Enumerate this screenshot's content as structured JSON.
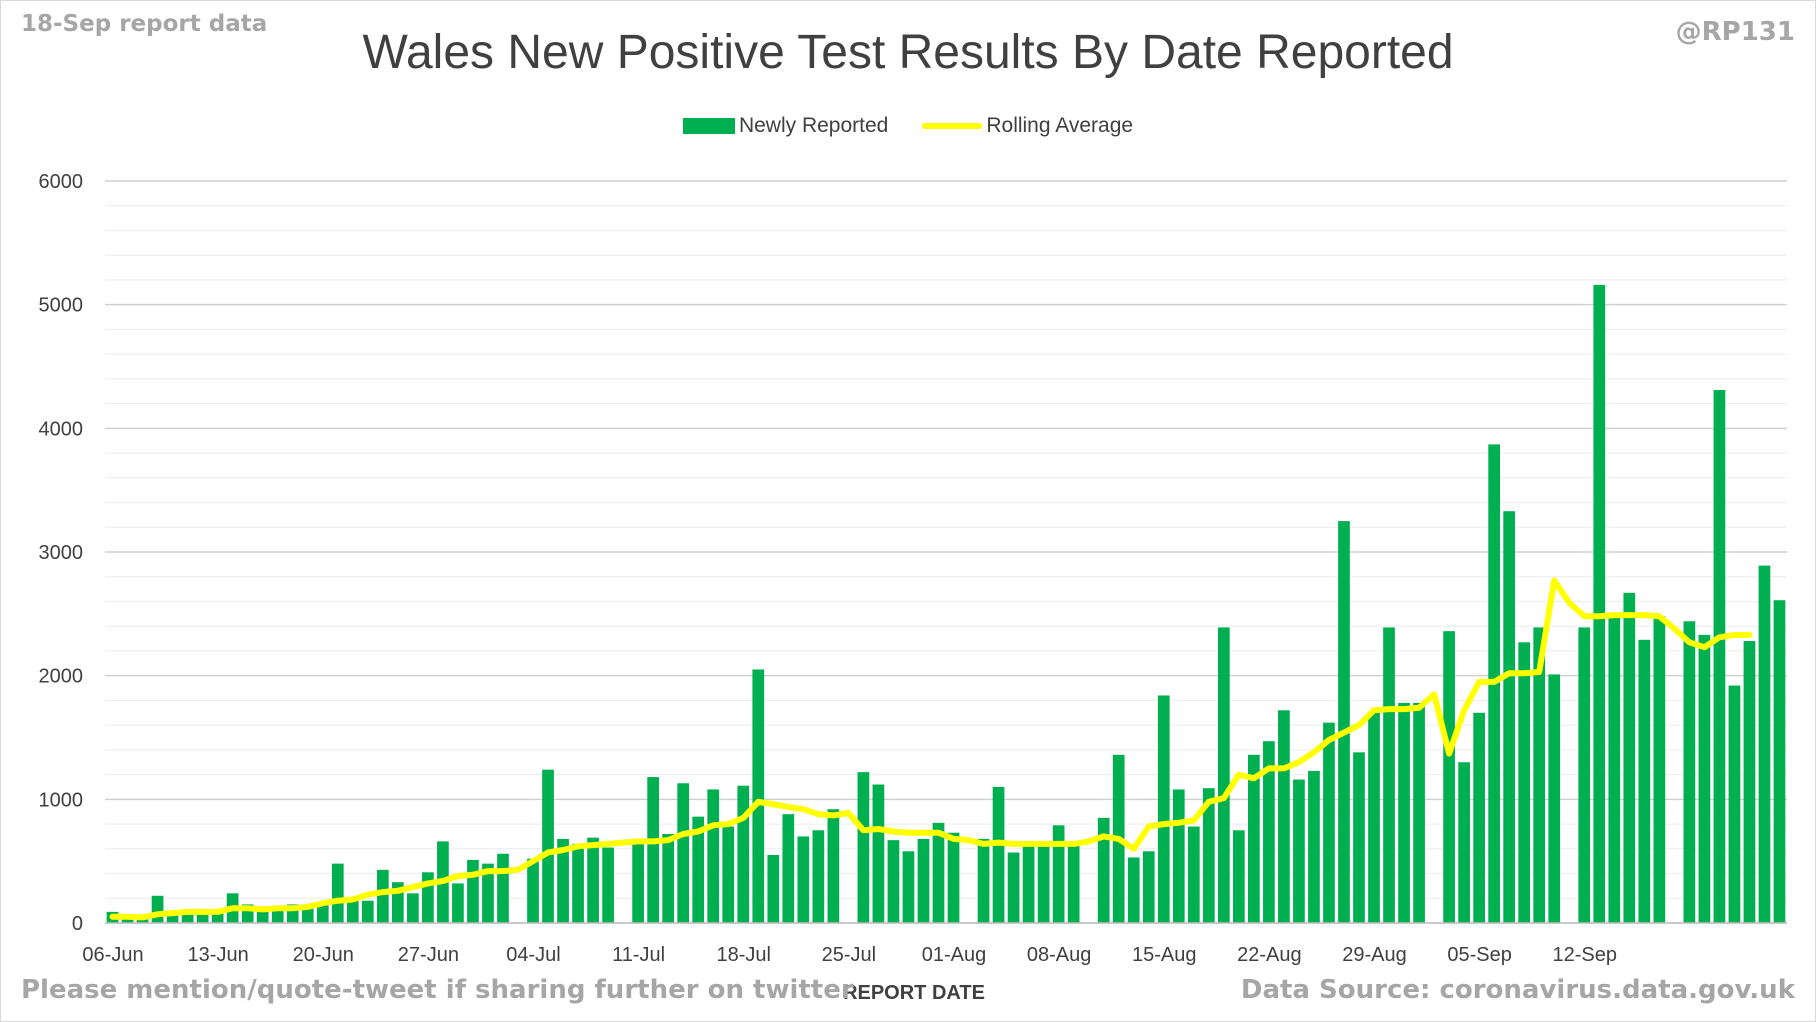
{
  "header": {
    "report_label": "18-Sep report data",
    "handle": "@RP131",
    "footer_left": "Please mention/quote-tweet if sharing further on twitter",
    "footer_right": "Data Source: coronavirus.data.gov.uk"
  },
  "colors": {
    "bar": "#00b050",
    "line": "#ffff00",
    "grid": "#d9d9d9",
    "text": "#404040"
  },
  "chart_data": {
    "type": "bar",
    "title": "Wales New Positive Test Results By Date Reported",
    "xlabel": "REPORT DATE",
    "ylabel": "",
    "ylim": [
      0,
      6000
    ],
    "yticks": [
      0,
      1000,
      2000,
      3000,
      4000,
      5000,
      6000
    ],
    "xticks": [
      "06-Jun",
      "13-Jun",
      "20-Jun",
      "27-Jun",
      "04-Jul",
      "11-Jul",
      "18-Jul",
      "25-Jul",
      "01-Aug",
      "08-Aug",
      "15-Aug",
      "22-Aug",
      "29-Aug",
      "05-Sep",
      "12-Sep"
    ],
    "legend": "top",
    "grid": true,
    "start_date": "06-Jun",
    "series": [
      {
        "name": "Newly Reported",
        "type": "bar",
        "values": [
          90,
          60,
          50,
          220,
          90,
          100,
          90,
          90,
          240,
          150,
          120,
          110,
          150,
          140,
          170,
          480,
          190,
          180,
          430,
          330,
          240,
          410,
          660,
          320,
          510,
          480,
          560,
          0,
          520,
          1240,
          680,
          640,
          690,
          610,
          0,
          640,
          1180,
          720,
          1130,
          860,
          1080,
          780,
          1110,
          2050,
          550,
          880,
          700,
          750,
          920,
          0,
          1220,
          1120,
          670,
          580,
          680,
          810,
          730,
          0,
          680,
          1100,
          570,
          620,
          640,
          790,
          650,
          0,
          850,
          1360,
          530,
          580,
          1840,
          1080,
          780,
          1090,
          2390,
          750,
          1360,
          1470,
          1720,
          1160,
          1230,
          1620,
          3250,
          1380,
          1700,
          2390,
          1780,
          1780,
          0,
          2360,
          1300,
          1700,
          3870,
          3330,
          2270,
          2390,
          2010,
          0,
          2390,
          5160,
          2500,
          2670,
          2290,
          2480,
          0,
          2440,
          2330,
          4310,
          1920,
          2280,
          2890,
          2610
        ]
      },
      {
        "name": "Rolling Average",
        "type": "line",
        "values": [
          50,
          50,
          45,
          70,
          80,
          90,
          90,
          90,
          120,
          120,
          110,
          120,
          120,
          130,
          160,
          180,
          190,
          230,
          250,
          260,
          290,
          320,
          340,
          380,
          390,
          420,
          420,
          430,
          500,
          570,
          590,
          620,
          630,
          640,
          650,
          660,
          660,
          670,
          720,
          740,
          790,
          800,
          850,
          980,
          960,
          940,
          920,
          880,
          870,
          890,
          750,
          760,
          740,
          730,
          730,
          730,
          680,
          670,
          640,
          650,
          640,
          640,
          640,
          640,
          640,
          660,
          700,
          680,
          600,
          780,
          800,
          810,
          830,
          980,
          1010,
          1200,
          1170,
          1250,
          1250,
          1300,
          1380,
          1480,
          1540,
          1600,
          1720,
          1730,
          1730,
          1740,
          1850,
          1370,
          1720,
          1950,
          1950,
          2020,
          2020,
          2030,
          2770,
          2590,
          2480,
          2480,
          2490,
          2490,
          2490,
          2480,
          2380,
          2270,
          2230,
          2310,
          2330,
          2330
        ]
      }
    ]
  }
}
